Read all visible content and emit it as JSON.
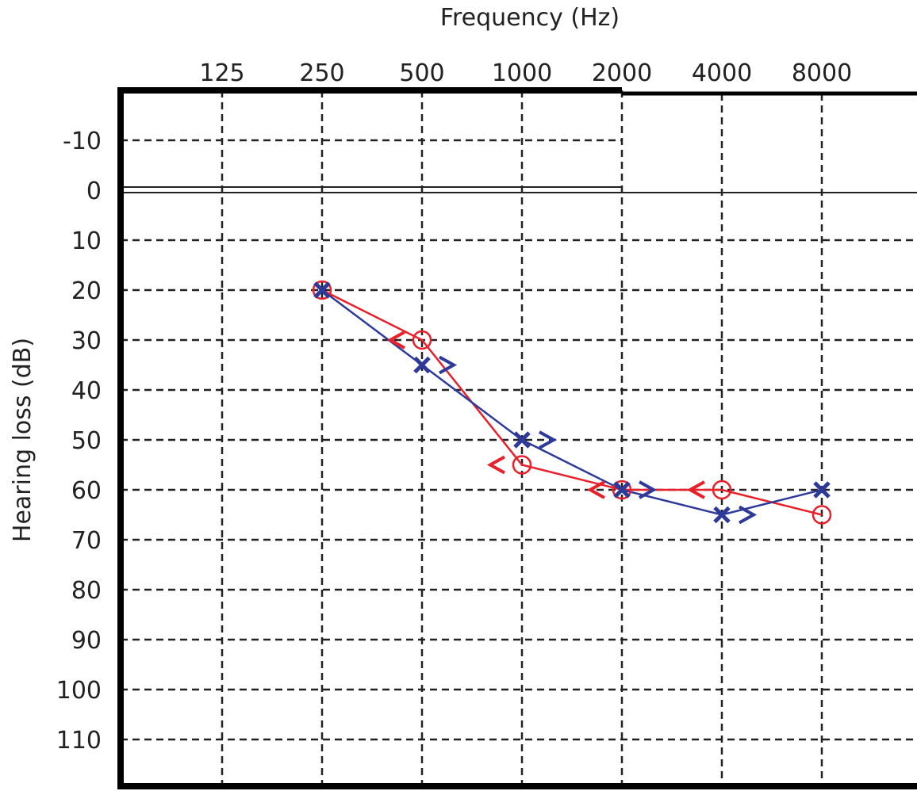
{
  "chart_data": {
    "type": "line",
    "title": "",
    "xlabel": "Frequency (Hz)",
    "ylabel": "Hearing loss (dB)",
    "x_scale": "log2",
    "categories": [
      "125",
      "250",
      "500",
      "1000",
      "2000",
      "4000",
      "8000"
    ],
    "yticks": [
      "-10",
      "0",
      "10",
      "20",
      "30",
      "40",
      "50",
      "60",
      "70",
      "80",
      "90",
      "100",
      "110"
    ],
    "ylim": [
      -20,
      120
    ],
    "y_inverted": true,
    "grid": true,
    "legend": "none",
    "colors": {
      "red": "#e8202a",
      "blue": "#2e3a9a",
      "grid": "#222222",
      "frame": "#000000"
    },
    "series": [
      {
        "color": "#e8202a",
        "marker": "circle-icon",
        "x": [
          250,
          500,
          1000,
          2000,
          4000,
          8000
        ],
        "values": [
          20,
          30,
          55,
          60,
          60,
          65
        ]
      },
      {
        "color": "#2e3a9a",
        "marker": "x-icon",
        "x": [
          250,
          500,
          1000,
          2000,
          4000,
          8000
        ],
        "values": [
          20,
          35,
          50,
          60,
          65,
          60
        ]
      }
    ],
    "bone_conduction": [
      {
        "color": "#e8202a",
        "symbol": "<",
        "marker": "left-bracket-icon",
        "x": [
          500,
          1000,
          2000,
          4000
        ],
        "values": [
          30,
          55,
          60,
          60
        ]
      },
      {
        "color": "#2e3a9a",
        "symbol": ">",
        "marker": "right-bracket-icon",
        "x": [
          500,
          1000,
          2000,
          4000
        ],
        "values": [
          35,
          50,
          60,
          65
        ]
      }
    ]
  }
}
